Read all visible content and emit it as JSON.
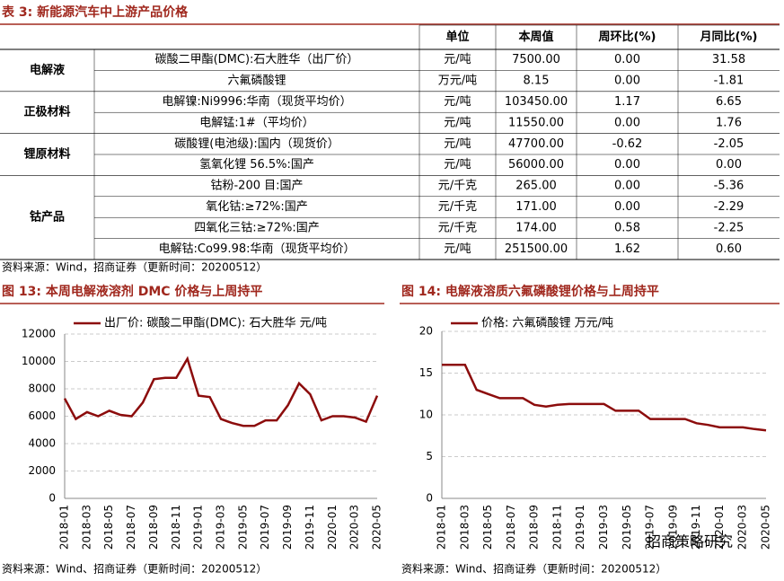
{
  "table": {
    "title": "表 3: 新能源汽车中上游产品价格",
    "header": [
      "单位",
      "本周值",
      "周环比(%)",
      "月同比(%)"
    ],
    "groups": [
      {
        "name": "电解液",
        "rows": [
          [
            "碳酸二甲酯(DMC):石大胜华（出厂价）",
            "元/吨",
            "7500.00",
            "0.00",
            "31.58"
          ],
          [
            "六氟磷酸锂",
            "万元/吨",
            "8.15",
            "0.00",
            "-1.81"
          ]
        ]
      },
      {
        "name": "正极材料",
        "rows": [
          [
            "电解镍:Ni9996:华南（现货平均价）",
            "元/吨",
            "103450.00",
            "1.17",
            "6.65"
          ],
          [
            "电解锰:1#（平均价）",
            "元/吨",
            "11550.00",
            "0.00",
            "1.76"
          ]
        ]
      },
      {
        "name": "锂原材料",
        "rows": [
          [
            "碳酸锂(电池级):国内（现货价）",
            "元/吨",
            "47700.00",
            "-0.62",
            "-2.05"
          ],
          [
            "氢氧化锂 56.5%:国产",
            "元/吨",
            "56000.00",
            "0.00",
            "0.00"
          ]
        ]
      },
      {
        "name": "钴产品",
        "rows": [
          [
            "钴粉-200 目:国产",
            "元/千克",
            "265.00",
            "0.00",
            "-5.36"
          ],
          [
            "氧化钴:≥72%:国产",
            "元/千克",
            "171.00",
            "0.00",
            "-2.29"
          ],
          [
            "四氧化三钴:≥72%:国产",
            "元/千克",
            "174.00",
            "0.58",
            "-2.25"
          ],
          [
            "电解钴:Co99.98:华南（现货平均价）",
            "元/吨",
            "251500.00",
            "1.62",
            "0.60"
          ]
        ]
      }
    ],
    "source": "资料来源：Wind，招商证券（更新时间：20200512）"
  },
  "chart_data": [
    {
      "type": "line",
      "title": "图 13: 本周电解液溶剂 DMC 价格与上周持平",
      "categories": [
        "2018-01",
        null,
        "2018-03",
        null,
        "2018-05",
        null,
        "2018-07",
        null,
        "2018-09",
        null,
        "2018-11",
        null,
        "2019-01",
        null,
        "2019-03",
        null,
        "2019-05",
        null,
        "2019-07",
        null,
        "2019-09",
        null,
        "2019-11",
        null,
        "2020-01",
        null,
        "2020-03",
        null,
        "2020-05"
      ],
      "series": [
        {
          "name": "出厂价: 碳酸二甲酯(DMC): 石大胜华  元/吨",
          "color": "#8c0c0c",
          "values": [
            7300,
            5800,
            6300,
            6000,
            6400,
            6100,
            6000,
            7000,
            8700,
            8800,
            8800,
            10200,
            7500,
            7400,
            5800,
            5500,
            5300,
            5300,
            5700,
            5700,
            6800,
            8400,
            7600,
            5700,
            6000,
            6000,
            5900,
            5600,
            7500
          ]
        }
      ],
      "ylim": [
        0,
        12000
      ],
      "yticks": [
        0,
        2000,
        4000,
        6000,
        8000,
        10000,
        12000
      ],
      "grid": true,
      "source": "资料来源：Wind、招商证券（更新时间：20200512）"
    },
    {
      "type": "line",
      "title": "图 14: 电解液溶质六氟磷酸锂价格与上周持平",
      "categories": [
        "2018-01",
        null,
        "2018-03",
        null,
        "2018-05",
        null,
        "2018-07",
        null,
        "2018-09",
        null,
        "2018-11",
        null,
        "2019-01",
        null,
        "2019-03",
        null,
        "2019-05",
        null,
        "2019-07",
        null,
        "2019-09",
        null,
        "2019-11",
        null,
        "2020-01",
        null,
        "2020-03",
        null,
        "2020-05"
      ],
      "series": [
        {
          "name": "价格: 六氟磷酸锂  万元/吨",
          "color": "#8c0c0c",
          "values": [
            16,
            16,
            16,
            13,
            12.5,
            12,
            12,
            12,
            11.2,
            11,
            11.2,
            11.3,
            11.3,
            11.3,
            11.3,
            10.5,
            10.5,
            10.5,
            9.5,
            9.5,
            9.5,
            9.5,
            9,
            8.8,
            8.5,
            8.5,
            8.5,
            8.3,
            8.15
          ]
        }
      ],
      "ylim": [
        0,
        20
      ],
      "yticks": [
        0,
        5,
        10,
        15,
        20
      ],
      "grid": true,
      "source": "资料来源：Wind、招商证券（更新时间：20200512）",
      "watermark": "招商策略研究"
    }
  ]
}
